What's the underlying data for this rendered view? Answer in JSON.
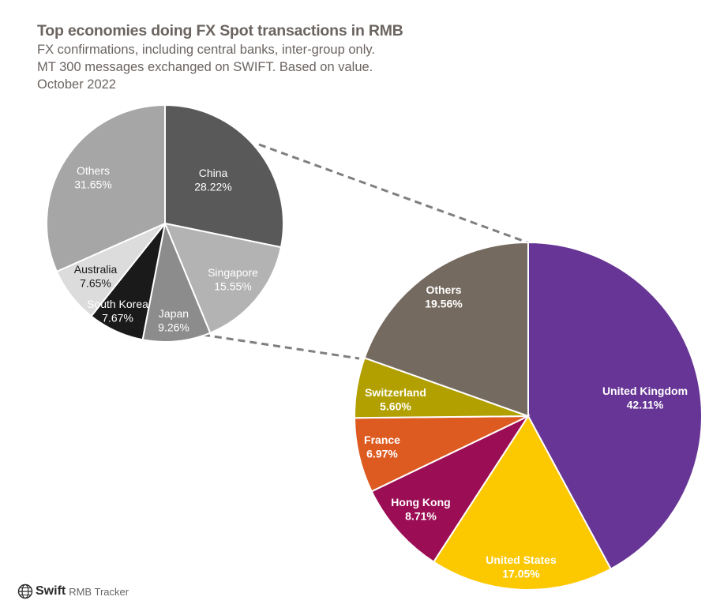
{
  "header": {
    "title": "Top economies doing FX Spot transactions in RMB",
    "subtitle_1": "FX confirmations, including central banks, inter-group only.",
    "subtitle_2": "MT 300 messages exchanged on SWIFT. Based on value.",
    "period": "October 2022"
  },
  "footer": {
    "logo_text": "Swift",
    "tracker_label": "RMB Tracker"
  },
  "chart_data": [
    {
      "type": "pie",
      "title": "Top economies doing FX Spot transactions in RMB (left pie)",
      "slices": [
        {
          "label": "China",
          "value": 28.22,
          "display": "28.22%",
          "color": "#595959",
          "text_color": "#ffffff"
        },
        {
          "label": "Singapore",
          "value": 15.55,
          "display": "15.55%",
          "color": "#b3b3b3",
          "text_color": "#ffffff"
        },
        {
          "label": "Japan",
          "value": 9.26,
          "display": "9.26%",
          "color": "#8c8c8c",
          "text_color": "#ffffff"
        },
        {
          "label": "South Korea",
          "value": 7.67,
          "display": "7.67%",
          "color": "#1a1a1a",
          "text_color": "#ffffff"
        },
        {
          "label": "Australia",
          "value": 7.65,
          "display": "7.65%",
          "color": "#dcdcdc",
          "text_color": "#1a1a1a"
        },
        {
          "label": "Others",
          "value": 31.65,
          "display": "31.65%",
          "color": "#a6a6a6",
          "text_color": "#ffffff"
        }
      ]
    },
    {
      "type": "pie",
      "title": "Top economies doing FX Spot transactions in RMB (right pie)",
      "slices": [
        {
          "label": "United Kingdom",
          "value": 42.11,
          "display": "42.11%",
          "color": "#673595",
          "text_color": "#ffffff"
        },
        {
          "label": "United States",
          "value": 17.05,
          "display": "17.05%",
          "color": "#fcc800",
          "text_color": "#ffffff"
        },
        {
          "label": "Hong Kong",
          "value": 8.71,
          "display": "8.71%",
          "color": "#9b0d54",
          "text_color": "#ffffff"
        },
        {
          "label": "France",
          "value": 6.97,
          "display": "6.97%",
          "color": "#dd5b20",
          "text_color": "#ffffff"
        },
        {
          "label": "Switzerland",
          "value": 5.6,
          "display": "5.60%",
          "color": "#b2a000",
          "text_color": "#ffffff"
        },
        {
          "label": "Others",
          "value": 19.56,
          "display": "19.56%",
          "color": "#756a5f",
          "text_color": "#ffffff"
        }
      ]
    }
  ]
}
